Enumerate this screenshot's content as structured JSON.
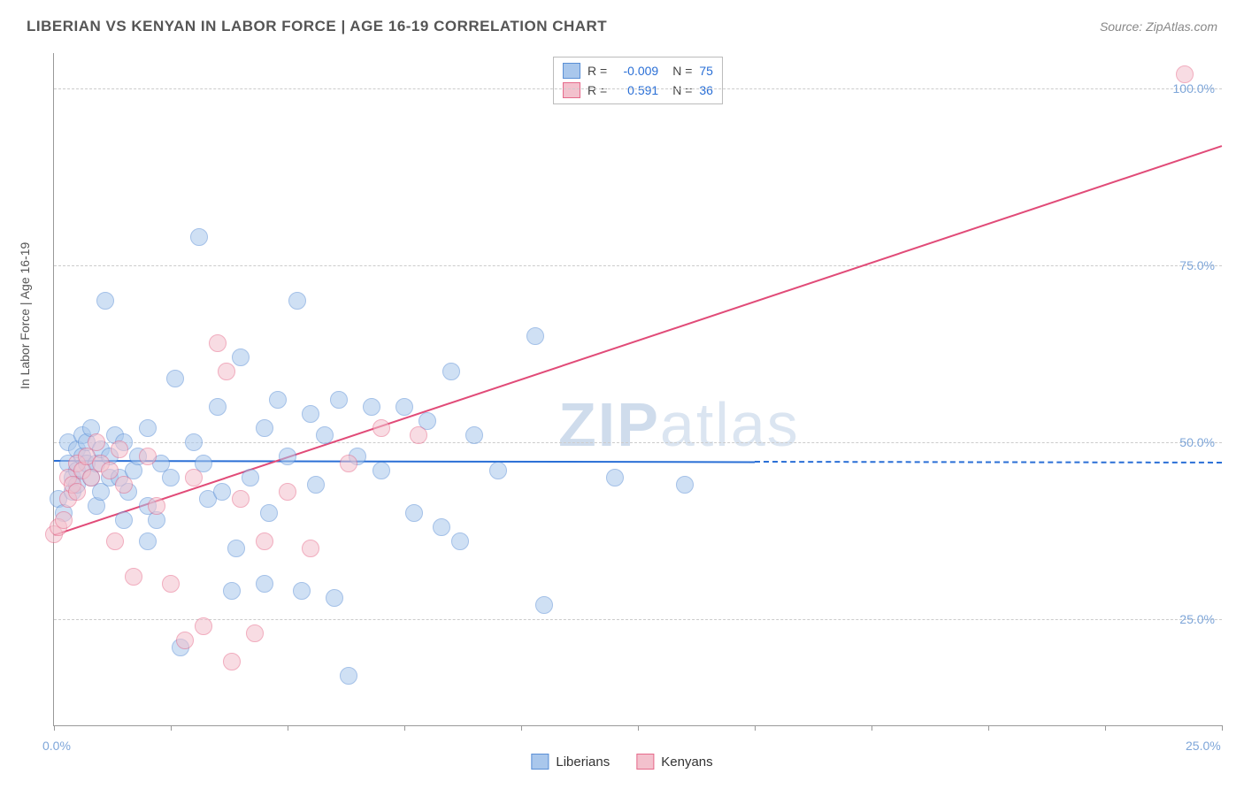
{
  "header": {
    "title": "LIBERIAN VS KENYAN IN LABOR FORCE | AGE 16-19 CORRELATION CHART",
    "source": "Source: ZipAtlas.com"
  },
  "chart": {
    "type": "scatter",
    "background_color": "#ffffff",
    "grid_color": "#cccccc",
    "axis_color": "#999999",
    "ylabel": "In Labor Force | Age 16-19",
    "label_fontsize": 14,
    "label_color": "#555555",
    "xlim": [
      0,
      25
    ],
    "ylim": [
      10,
      105
    ],
    "yticks": [
      25,
      50,
      75,
      100
    ],
    "ytick_labels": [
      "25.0%",
      "50.0%",
      "75.0%",
      "100.0%"
    ],
    "xticks": [
      0,
      2.5,
      5,
      7.5,
      10,
      12.5,
      15,
      17.5,
      20,
      22.5,
      25
    ],
    "x_axis_label_start": "0.0%",
    "x_axis_label_end": "25.0%",
    "tick_label_color": "#7ea6d9",
    "marker_radius": 9,
    "marker_opacity": 0.55,
    "marker_stroke_width": 1,
    "watermark": "ZIPatlas",
    "watermark_color": "#dbe5f1"
  },
  "series": [
    {
      "name": "Liberians",
      "fill": "#a9c7ec",
      "stroke": "#5a8fd6",
      "r_value": "-0.009",
      "n_value": "75",
      "trend": {
        "y_start": 47.5,
        "y_end": 47.2,
        "x_solid_end": 15,
        "color": "#2a6fd6",
        "width": 2
      },
      "points": [
        [
          0.1,
          42
        ],
        [
          0.2,
          40
        ],
        [
          0.3,
          47
        ],
        [
          0.3,
          50
        ],
        [
          0.4,
          45
        ],
        [
          0.4,
          43
        ],
        [
          0.5,
          46
        ],
        [
          0.5,
          49
        ],
        [
          0.5,
          44
        ],
        [
          0.6,
          51
        ],
        [
          0.6,
          48
        ],
        [
          0.7,
          47
        ],
        [
          0.7,
          50
        ],
        [
          0.8,
          45
        ],
        [
          0.8,
          52
        ],
        [
          0.9,
          47
        ],
        [
          0.9,
          41
        ],
        [
          1.0,
          49
        ],
        [
          1.0,
          43
        ],
        [
          1.1,
          70
        ],
        [
          1.2,
          48
        ],
        [
          1.2,
          45
        ],
        [
          1.3,
          51
        ],
        [
          1.4,
          45
        ],
        [
          1.5,
          50
        ],
        [
          1.5,
          39
        ],
        [
          1.6,
          43
        ],
        [
          1.7,
          46
        ],
        [
          1.8,
          48
        ],
        [
          2.0,
          52
        ],
        [
          2.0,
          41
        ],
        [
          2.0,
          36
        ],
        [
          2.2,
          39
        ],
        [
          2.3,
          47
        ],
        [
          2.5,
          45
        ],
        [
          2.6,
          59
        ],
        [
          2.7,
          21
        ],
        [
          3.0,
          50
        ],
        [
          3.1,
          79
        ],
        [
          3.3,
          42
        ],
        [
          3.5,
          55
        ],
        [
          3.6,
          43
        ],
        [
          3.8,
          29
        ],
        [
          3.9,
          35
        ],
        [
          4.0,
          62
        ],
        [
          4.2,
          45
        ],
        [
          4.5,
          52
        ],
        [
          4.5,
          30
        ],
        [
          4.8,
          56
        ],
        [
          5.0,
          48
        ],
        [
          5.2,
          70
        ],
        [
          5.5,
          54
        ],
        [
          5.6,
          44
        ],
        [
          5.8,
          51
        ],
        [
          6.0,
          28
        ],
        [
          6.1,
          56
        ],
        [
          6.3,
          17
        ],
        [
          6.5,
          48
        ],
        [
          6.8,
          55
        ],
        [
          7.0,
          46
        ],
        [
          7.5,
          55
        ],
        [
          7.7,
          40
        ],
        [
          8.0,
          53
        ],
        [
          8.3,
          38
        ],
        [
          8.5,
          60
        ],
        [
          8.7,
          36
        ],
        [
          9.0,
          51
        ],
        [
          9.5,
          46
        ],
        [
          10.3,
          65
        ],
        [
          10.5,
          27
        ],
        [
          12.0,
          45
        ],
        [
          13.5,
          44
        ],
        [
          5.3,
          29
        ],
        [
          4.6,
          40
        ],
        [
          3.2,
          47
        ]
      ]
    },
    {
      "name": "Kenyans",
      "fill": "#f3c1cd",
      "stroke": "#e66a8a",
      "r_value": "0.591",
      "n_value": "36",
      "trend": {
        "y_start": 37,
        "y_end": 92,
        "x_solid_end": 25,
        "color": "#e14b78",
        "width": 2
      },
      "points": [
        [
          0.0,
          37
        ],
        [
          0.1,
          38
        ],
        [
          0.2,
          39
        ],
        [
          0.3,
          42
        ],
        [
          0.3,
          45
        ],
        [
          0.4,
          44
        ],
        [
          0.5,
          43
        ],
        [
          0.5,
          47
        ],
        [
          0.6,
          46
        ],
        [
          0.7,
          48
        ],
        [
          0.8,
          45
        ],
        [
          0.9,
          50
        ],
        [
          1.0,
          47
        ],
        [
          1.2,
          46
        ],
        [
          1.3,
          36
        ],
        [
          1.4,
          49
        ],
        [
          1.5,
          44
        ],
        [
          1.7,
          31
        ],
        [
          2.0,
          48
        ],
        [
          2.2,
          41
        ],
        [
          2.5,
          30
        ],
        [
          2.8,
          22
        ],
        [
          3.0,
          45
        ],
        [
          3.2,
          24
        ],
        [
          3.5,
          64
        ],
        [
          3.7,
          60
        ],
        [
          3.8,
          19
        ],
        [
          4.0,
          42
        ],
        [
          4.3,
          23
        ],
        [
          4.5,
          36
        ],
        [
          5.0,
          43
        ],
        [
          5.5,
          35
        ],
        [
          6.3,
          47
        ],
        [
          7.0,
          52
        ],
        [
          7.8,
          51
        ],
        [
          24.2,
          102
        ]
      ]
    }
  ],
  "legend_top": {
    "r_label": "R =",
    "n_label": "N ="
  },
  "legend_bottom": {
    "items": [
      "Liberians",
      "Kenyans"
    ]
  }
}
